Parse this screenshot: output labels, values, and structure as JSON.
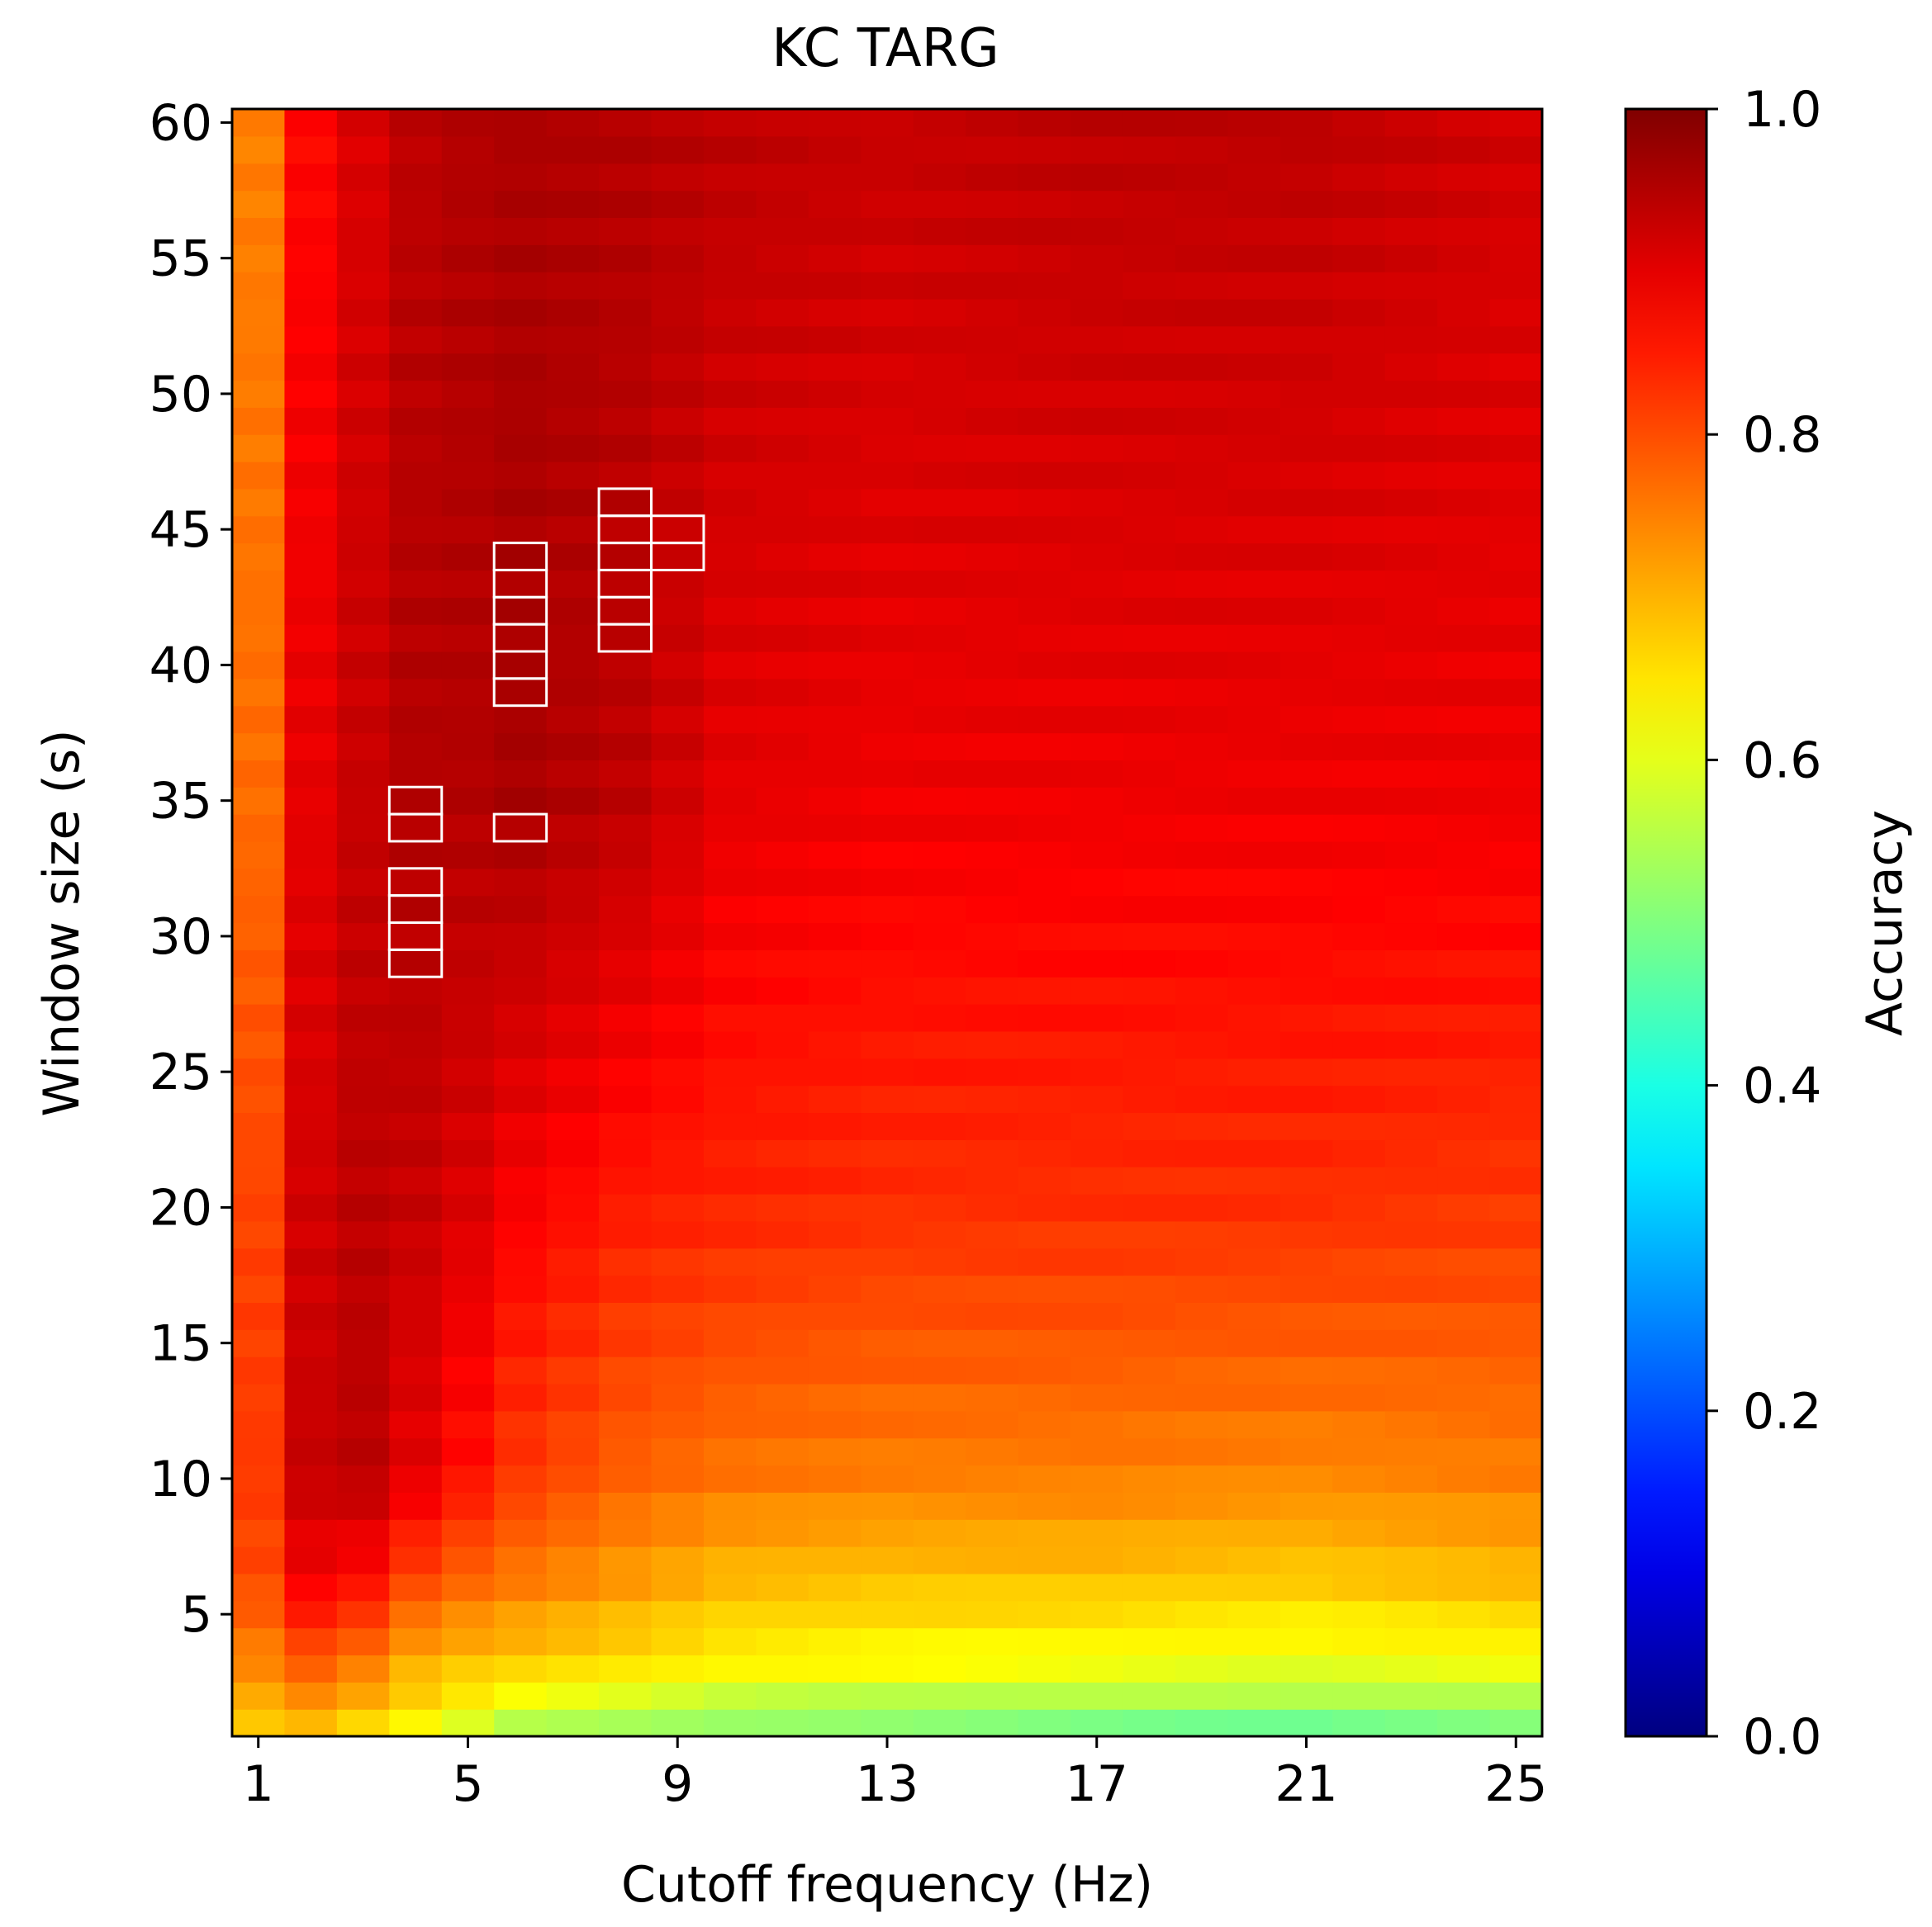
{
  "chart_data": {
    "type": "heatmap",
    "title": "KC TARG",
    "xlabel": "Cutoff frequency (Hz)",
    "ylabel": "Window size (s)",
    "colorbar_label": "Accuracy",
    "colormap": "jet",
    "x_range": [
      1,
      25
    ],
    "y_range": [
      1,
      60
    ],
    "x_ticks": [
      "1",
      "5",
      "9",
      "13",
      "17",
      "21",
      "25"
    ],
    "y_ticks": [
      "5",
      "10",
      "15",
      "20",
      "25",
      "30",
      "35",
      "40",
      "45",
      "50",
      "55",
      "60"
    ],
    "colorbar_ticks": [
      "0.0",
      "0.2",
      "0.4",
      "0.6",
      "0.8",
      "1.0"
    ],
    "value_range": [
      0.0,
      1.0
    ],
    "grid": false,
    "profile_columns": [
      {
        "freq": 1,
        "w1": 0.68,
        "w3": 0.74,
        "w6": 0.8,
        "w10": 0.82,
        "w20": 0.81,
        "w35": 0.77,
        "w60": 0.75
      },
      {
        "freq": 2,
        "w1": 0.7,
        "w3": 0.78,
        "w6": 0.88,
        "w10": 0.93,
        "w20": 0.92,
        "w35": 0.9,
        "w60": 0.87
      },
      {
        "freq": 3,
        "w1": 0.67,
        "w3": 0.75,
        "w6": 0.86,
        "w10": 0.94,
        "w20": 0.94,
        "w35": 0.93,
        "w60": 0.91
      },
      {
        "freq": 4,
        "w1": 0.64,
        "w3": 0.7,
        "w6": 0.8,
        "w10": 0.9,
        "w20": 0.93,
        "w35": 0.95,
        "w60": 0.94
      },
      {
        "freq": 5,
        "w1": 0.6,
        "w3": 0.68,
        "w6": 0.77,
        "w10": 0.86,
        "w20": 0.91,
        "w35": 0.95,
        "w60": 0.95
      },
      {
        "freq": 6,
        "w1": 0.56,
        "w3": 0.67,
        "w6": 0.75,
        "w10": 0.82,
        "w20": 0.88,
        "w35": 0.96,
        "w60": 0.955
      },
      {
        "freq": 8,
        "w1": 0.54,
        "w3": 0.65,
        "w6": 0.72,
        "w10": 0.78,
        "w20": 0.85,
        "w35": 0.94,
        "w60": 0.95
      },
      {
        "freq": 10,
        "w1": 0.52,
        "w3": 0.63,
        "w6": 0.69,
        "w10": 0.76,
        "w20": 0.84,
        "w35": 0.9,
        "w60": 0.94
      },
      {
        "freq": 13,
        "w1": 0.51,
        "w3": 0.62,
        "w6": 0.68,
        "w10": 0.75,
        "w20": 0.83,
        "w35": 0.89,
        "w60": 0.93
      },
      {
        "freq": 17,
        "w1": 0.5,
        "w3": 0.61,
        "w6": 0.68,
        "w10": 0.75,
        "w20": 0.83,
        "w35": 0.89,
        "w60": 0.94
      },
      {
        "freq": 21,
        "w1": 0.49,
        "w3": 0.6,
        "w6": 0.67,
        "w10": 0.74,
        "w20": 0.83,
        "w35": 0.89,
        "w60": 0.94
      },
      {
        "freq": 25,
        "w1": 0.5,
        "w3": 0.61,
        "w6": 0.69,
        "w10": 0.75,
        "w20": 0.82,
        "w35": 0.89,
        "w60": 0.92
      }
    ],
    "highlighted_cells": [
      {
        "freq": 4,
        "windows": [
          29,
          30,
          31,
          32,
          34,
          35
        ]
      },
      {
        "freq": 6,
        "windows": [
          34,
          39,
          40,
          41,
          42,
          43,
          44
        ]
      },
      {
        "freq": 8,
        "windows": [
          41,
          42,
          43,
          44,
          45,
          46
        ]
      },
      {
        "freq": 9,
        "windows": [
          44,
          45
        ]
      }
    ]
  }
}
